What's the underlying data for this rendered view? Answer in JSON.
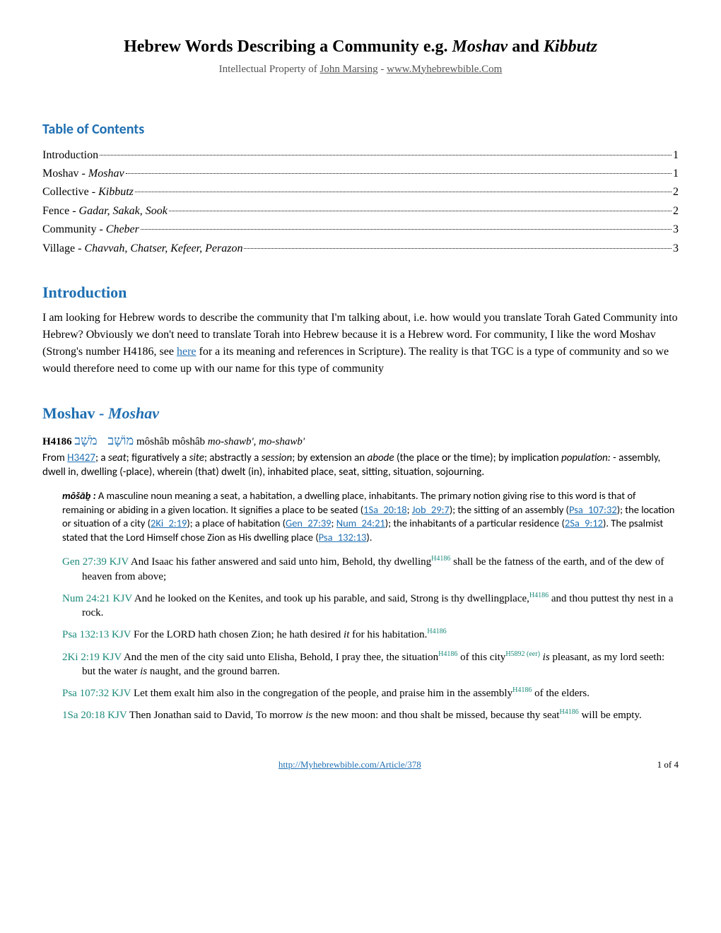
{
  "title_pre": "Hebrew Words Describing a Community e.g. ",
  "title_em1": "Moshav",
  "title_mid": " and ",
  "title_em2": "Kibbutz",
  "subtitle_pre": "Intellectual Property of ",
  "author": "John Marsing",
  "subtitle_sep": " - ",
  "site": "www.Myhebrewbible.Com",
  "toc_heading": "Table of Contents",
  "toc": [
    {
      "label": "Introduction",
      "em": "",
      "page": "1"
    },
    {
      "label": "Moshav - ",
      "em": "Moshav",
      "page": "1"
    },
    {
      "label": "Collective - ",
      "em": "Kibbutz",
      "page": "2"
    },
    {
      "label": "Fence - ",
      "em": "Gadar, Sakak, Sook",
      "page": "2"
    },
    {
      "label": "Community - ",
      "em": "Cheber",
      "page": "3"
    },
    {
      "label": "Village - ",
      "em": "Chavvah, Chatser, Kefeer, Perazon",
      "page": "3"
    }
  ],
  "intro_heading": "Introduction",
  "intro_p1": "I am looking for Hebrew words to describe the community that I'm talking about, i.e. how would you translate Torah Gated Community into Hebrew?  Obviously we don't need to translate Torah into Hebrew because it is a Hebrew word.  For community, I like the word Moshav (Strong's number H4186, see ",
  "intro_here": "here",
  "intro_p2": " for a its meaning and references in Scripture).  The reality is that TGC is a type of community and so we would therefore need to come up with our name for this type of community",
  "moshav_heading_pre": "Moshav - ",
  "moshav_heading_em": "Moshav",
  "entry_strong": "H4186",
  "entry_hebrew1": "מוֹשָׁב",
  "entry_hebrew2": "מֹשָׁב",
  "entry_trans": " môshâb  môshâb ",
  "entry_pron": "mo-shawb', mo-shawb'",
  "entry_from": "From ",
  "entry_from_link": "H3427",
  "entry_def1": "; a ",
  "entry_seat": "seat",
  "entry_def2": "; figuratively a ",
  "entry_site": "site",
  "entry_def3": "; abstractly a ",
  "entry_session": "session",
  "entry_def4": "; by extension an ",
  "entry_abode": "abode",
  "entry_def5": " (the place or the time); by implication ",
  "entry_pop": "population:",
  "entry_def6": " - assembly, dwell in, dwelling (-place), wherein (that) dwelt (in), inhabited place, seat, sitting, situation, sojourning.",
  "defn_lead": "môšāḇ :",
  "defn_body1": " A masculine noun meaning a seat, a habitation, a dwelling place, inhabitants. The primary notion giving rise to this word is that of remaining or abiding in a given location. It signifies a place to be seated (",
  "defn_r1": "1Sa_20:18",
  "defn_sep1": "; ",
  "defn_r2": "Job_29:7",
  "defn_body2": "); the sitting of an assembly (",
  "defn_r3": "Psa_107:32",
  "defn_body3": "); the location or situation of a city (",
  "defn_r4": "2Ki_2:19",
  "defn_body4": "); a place of habitation (",
  "defn_r5": "Gen_27:39",
  "defn_sep2": "; ",
  "defn_r6": "Num_24:21",
  "defn_body5": "); the inhabitants of a particular residence (",
  "defn_r7": "2Sa_9:12",
  "defn_body6": "). The psalmist stated that the Lord Himself chose Zion as His dwelling place (",
  "defn_r8": "Psa_132:13",
  "defn_body7": ").",
  "v1_ref": "Gen 27:39 KJV",
  "v1_a": "  And Isaac his father answered and said unto him, Behold, thy dwelling",
  "v1_sup": "H4186",
  "v1_b": "  shall be the fatness of the earth, and of the dew of heaven from above;",
  "v2_ref": "Num 24:21 KJV",
  "v2_a": "  And he looked on the Kenites, and took up his parable, and said, Strong is thy dwellingplace,",
  "v2_sup": "H4186",
  "v2_b": " and thou puttest thy nest in a rock.",
  "v3_ref": "Psa 132:13 KJV",
  "v3_a": "  For the LORD hath chosen Zion; he hath desired ",
  "v3_it": "it",
  "v3_b": " for his habitation.",
  "v3_sup": "H4186",
  "v4_ref": "2Ki 2:19 KJV",
  "v4_a": "  And the men of the city said unto Elisha, Behold, I pray thee, the situation",
  "v4_sup1": "H4186",
  "v4_b": " of this city",
  "v4_sup2": "H5892 (eer)",
  "v4_c": " ",
  "v4_is": "is",
  "v4_d": " pleasant, as my lord seeth: but the water ",
  "v4_is2": "is",
  "v4_e": " naught, and the ground barren.",
  "v5_ref": "Psa 107:32 KJV",
  "v5_a": "  Let them exalt him also in the congregation of the people, and praise him in the assembly",
  "v5_sup": "H4186",
  "v5_b": "  of the elders.",
  "v6_ref": "1Sa 20:18 KJV",
  "v6_a": "  Then Jonathan said to David, To morrow ",
  "v6_is": "is",
  "v6_b": " the new moon: and thou shalt be missed, because  thy seat",
  "v6_sup": "H4186",
  "v6_c": " will be empty.",
  "footer_url": "http://Myhebrewbible.com/Article/378",
  "footer_page": "1 of 4"
}
